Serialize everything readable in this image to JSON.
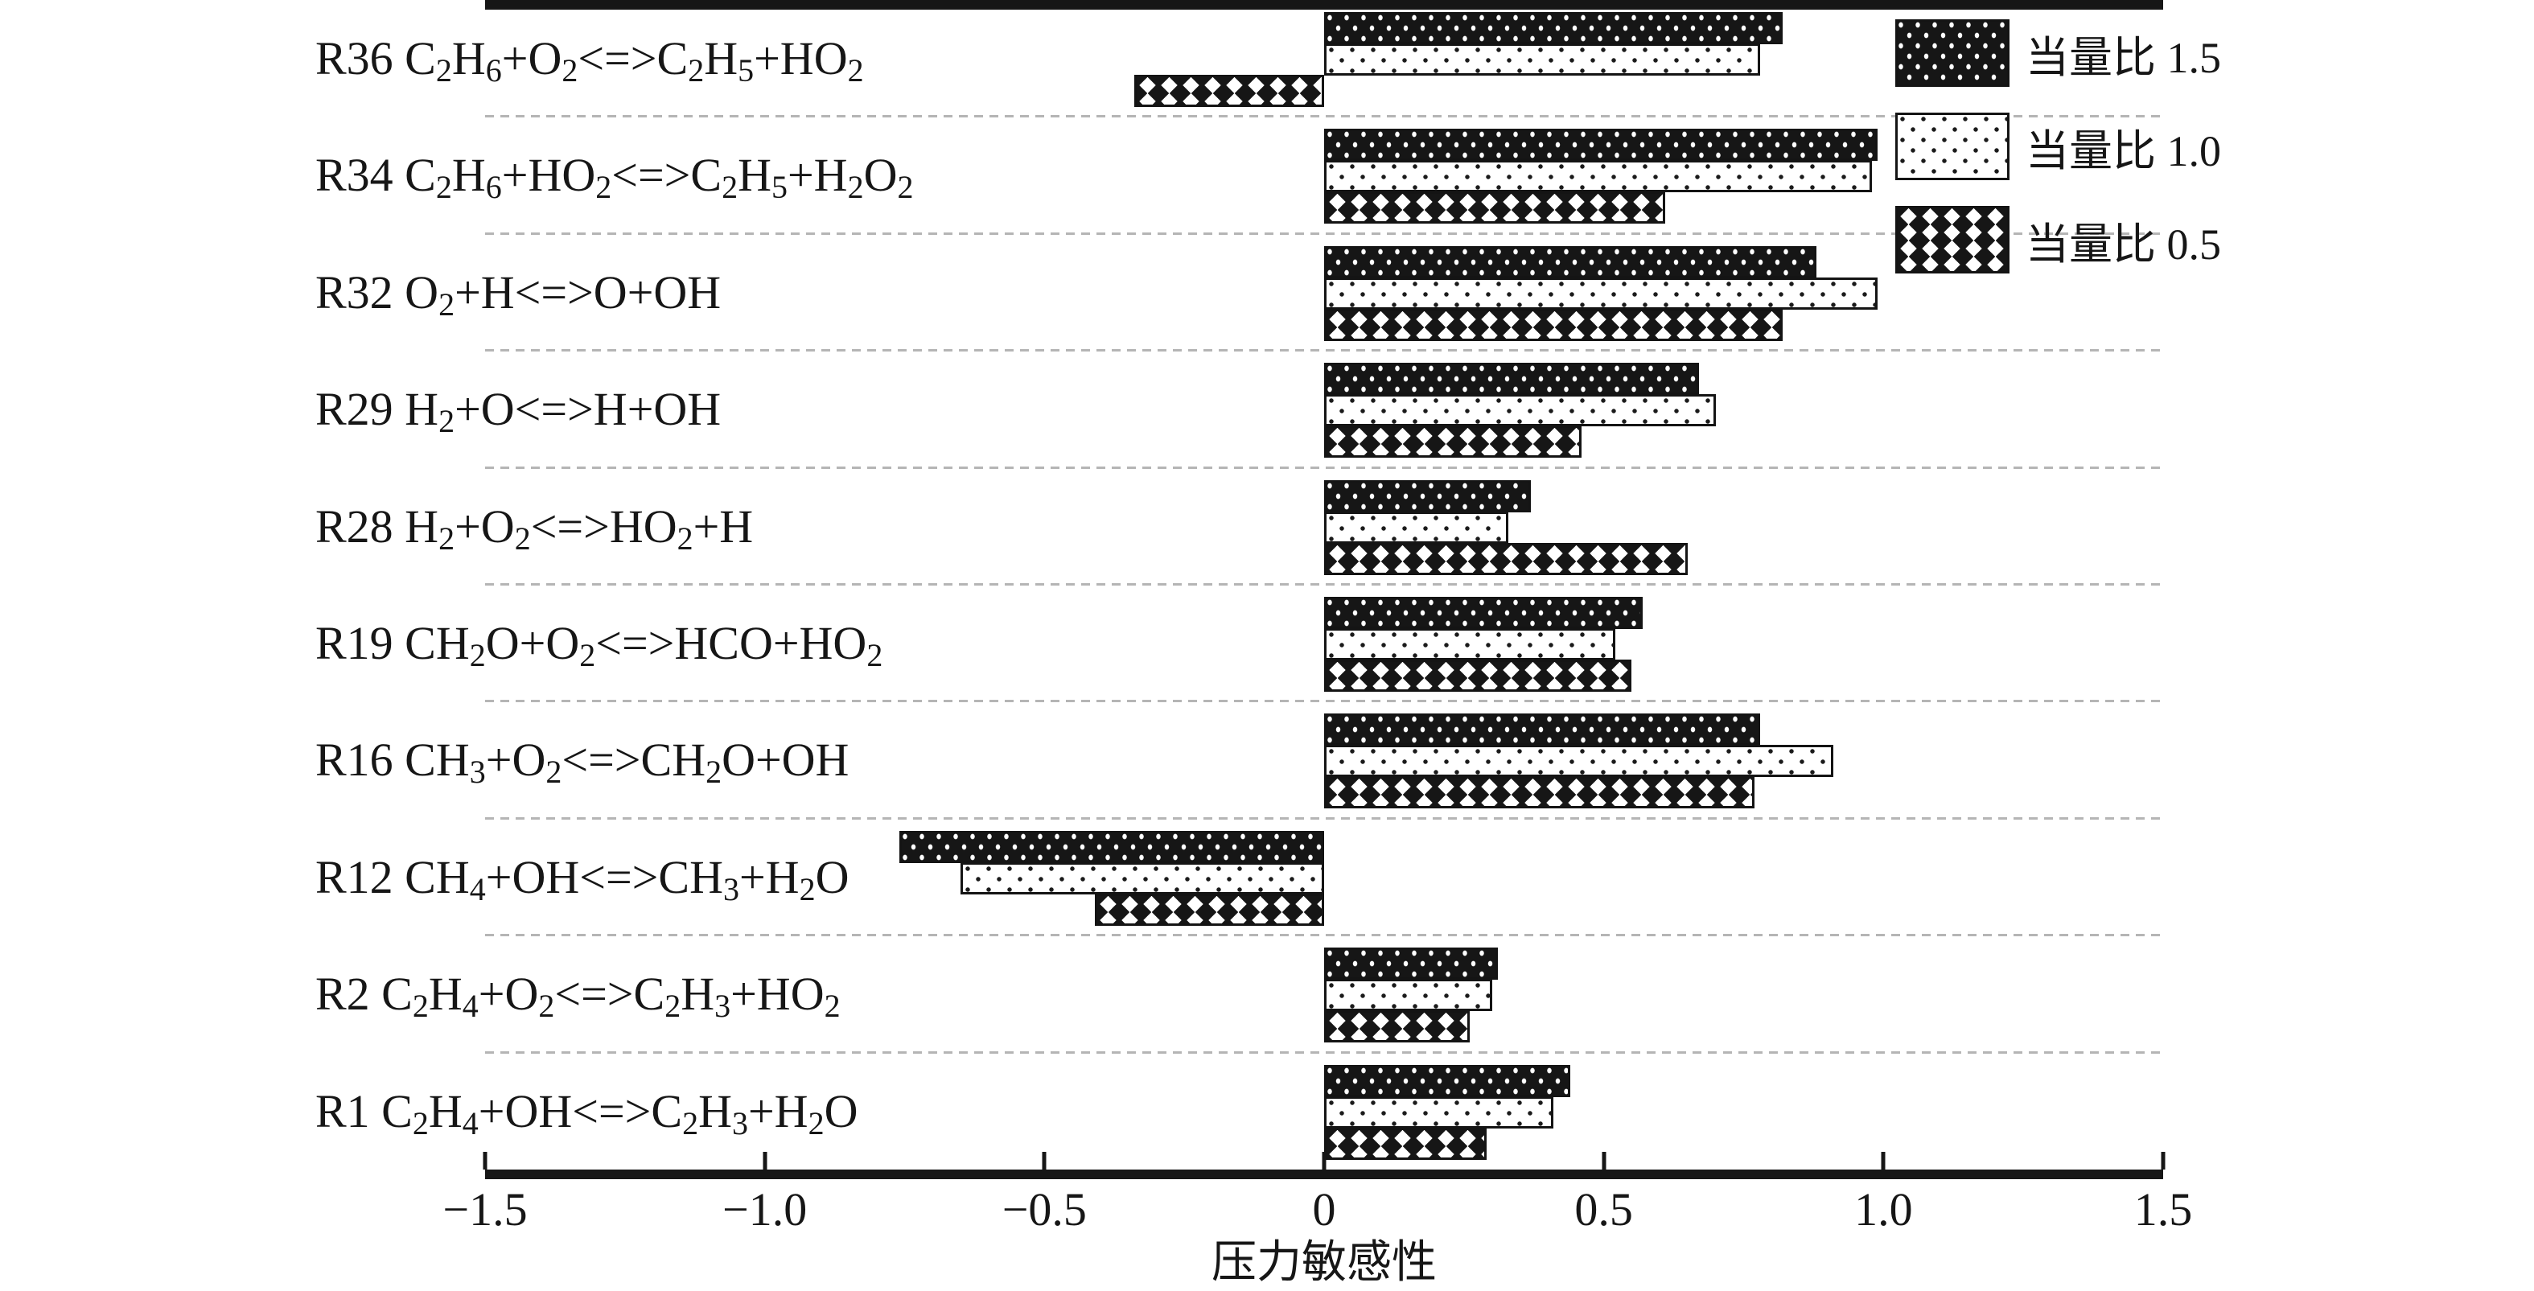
{
  "chart_data": {
    "type": "bar",
    "orientation": "horizontal",
    "title": "",
    "xlabel": "压力敏感性",
    "xlim": [
      -1.5,
      1.5
    ],
    "grid": "dashed horizontal separators between category groups",
    "legend_position": "top-right inside plot",
    "xtick_labels": [
      "−1.5",
      "−1.0",
      "−0.5",
      "0",
      "0.5",
      "1.0",
      "1.5"
    ],
    "xticks": [
      -1.5,
      -1.0,
      -0.5,
      0,
      0.5,
      1.0,
      1.5
    ],
    "categories": [
      "R36 C2H6+O2<=>C2H5+HO2",
      "R34 C2H6+HO2<=>C2H5+H2O2",
      "R32 O2+H<=>O+OH",
      "R29 H2+O<=>H+OH",
      "R28 H2+O2<=>HO2+H",
      "R19 CH2O+O2<=>HCO+HO2",
      "R16 CH3+O2<=>CH2O+OH",
      "R12 CH4+OH<=>CH3+H2O",
      "R2 C2H4+O2<=>C2H3+HO2",
      "R1 C2H4+OH<=>C2H3+H2O"
    ],
    "categories_rich": [
      [
        [
          "R36 C",
          0
        ],
        [
          "2",
          1
        ],
        [
          "H",
          0
        ],
        [
          "6",
          1
        ],
        [
          "+O",
          0
        ],
        [
          "2",
          1
        ],
        [
          "<=>C",
          0
        ],
        [
          "2",
          1
        ],
        [
          "H",
          0
        ],
        [
          "5",
          1
        ],
        [
          "+HO",
          0
        ],
        [
          "2",
          1
        ]
      ],
      [
        [
          "R34 C",
          0
        ],
        [
          "2",
          1
        ],
        [
          "H",
          0
        ],
        [
          "6",
          1
        ],
        [
          "+HO",
          0
        ],
        [
          "2",
          1
        ],
        [
          "<=>C",
          0
        ],
        [
          "2",
          1
        ],
        [
          "H",
          0
        ],
        [
          "5",
          1
        ],
        [
          "+H",
          0
        ],
        [
          "2",
          1
        ],
        [
          "O",
          0
        ],
        [
          "2",
          1
        ]
      ],
      [
        [
          "R32 O",
          0
        ],
        [
          "2",
          1
        ],
        [
          "+H<=>O+OH",
          0
        ]
      ],
      [
        [
          "R29 H",
          0
        ],
        [
          "2",
          1
        ],
        [
          "+O<=>H+OH",
          0
        ]
      ],
      [
        [
          "R28 H",
          0
        ],
        [
          "2",
          1
        ],
        [
          "+O",
          0
        ],
        [
          "2",
          1
        ],
        [
          "<=>HO",
          0
        ],
        [
          "2",
          1
        ],
        [
          "+H",
          0
        ]
      ],
      [
        [
          "R19 CH",
          0
        ],
        [
          "2",
          1
        ],
        [
          "O+O",
          0
        ],
        [
          "2",
          1
        ],
        [
          "<=>HCO+HO",
          0
        ],
        [
          "2",
          1
        ]
      ],
      [
        [
          "R16 CH",
          0
        ],
        [
          "3",
          1
        ],
        [
          "+O",
          0
        ],
        [
          "2",
          1
        ],
        [
          "<=>CH",
          0
        ],
        [
          "2",
          1
        ],
        [
          "O+OH",
          0
        ]
      ],
      [
        [
          "R12 CH",
          0
        ],
        [
          "4",
          1
        ],
        [
          "+OH<=>CH",
          0
        ],
        [
          "3",
          1
        ],
        [
          "+H",
          0
        ],
        [
          "2",
          1
        ],
        [
          "O",
          0
        ]
      ],
      [
        [
          "R2 C",
          0
        ],
        [
          "2",
          1
        ],
        [
          "H",
          0
        ],
        [
          "4",
          1
        ],
        [
          "+O",
          0
        ],
        [
          "2",
          1
        ],
        [
          "<=>C",
          0
        ],
        [
          "2",
          1
        ],
        [
          "H",
          0
        ],
        [
          "3",
          1
        ],
        [
          "+HO",
          0
        ],
        [
          "2",
          1
        ]
      ],
      [
        [
          "R1 C",
          0
        ],
        [
          "2",
          1
        ],
        [
          "H",
          0
        ],
        [
          "4",
          1
        ],
        [
          "+OH<=>C",
          0
        ],
        [
          "2",
          1
        ],
        [
          "H",
          0
        ],
        [
          "3",
          1
        ],
        [
          "+H",
          0
        ],
        [
          "2",
          1
        ],
        [
          "O",
          0
        ]
      ]
    ],
    "series": [
      {
        "name": "当量比 1.5",
        "pattern": "white dots on black",
        "values": [
          0.82,
          0.99,
          0.88,
          0.67,
          0.37,
          0.57,
          0.78,
          -0.76,
          0.31,
          0.44
        ]
      },
      {
        "name": "当量比 1.0",
        "pattern": "black dots on white",
        "values": [
          0.78,
          0.98,
          0.99,
          0.7,
          0.33,
          0.52,
          0.91,
          -0.65,
          0.3,
          0.41
        ]
      },
      {
        "name": "当量比 0.5",
        "pattern": "black diamonds on white",
        "values": [
          -0.34,
          0.61,
          0.82,
          0.46,
          0.65,
          0.55,
          0.77,
          -0.41,
          0.26,
          0.29
        ]
      }
    ]
  },
  "colors": {
    "ink": "#161616",
    "separator_gray": "#b5b5b5",
    "background": "#ffffff"
  }
}
